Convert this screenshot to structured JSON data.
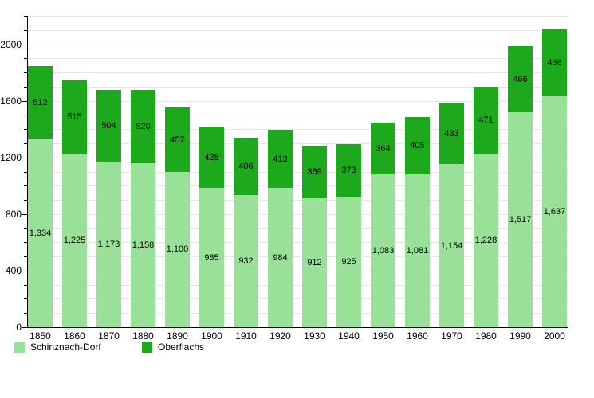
{
  "chart_data": {
    "type": "bar",
    "stacked": true,
    "title": "",
    "xlabel": "",
    "ylabel": "",
    "categories": [
      "1850",
      "1860",
      "1870",
      "1880",
      "1890",
      "1900",
      "1910",
      "1920",
      "1930",
      "1940",
      "1950",
      "1960",
      "1970",
      "1980",
      "1990",
      "2000"
    ],
    "series": [
      {
        "name": "Schinznach-Dorf",
        "color": "#99e099",
        "values": [
          1334,
          1225,
          1173,
          1158,
          1100,
          985,
          932,
          984,
          912,
          925,
          1083,
          1081,
          1154,
          1228,
          1517,
          1637
        ]
      },
      {
        "name": "Oberflachs",
        "color": "#1ca91c",
        "values": [
          512,
          515,
          504,
          520,
          457,
          428,
          406,
          413,
          369,
          373,
          364,
          405,
          433,
          471,
          466,
          468
        ]
      }
    ],
    "ylim": [
      0,
      2200
    ],
    "yticks_labeled": [
      0,
      400,
      800,
      1200,
      1600,
      2000
    ],
    "ytick_minor_step": 100,
    "grid": true,
    "gridline_step": 100,
    "gridline_color": "#e6e6e6",
    "axis_color": "#000000",
    "value_labels": "inside-center",
    "value_label_color": "#000000",
    "legend_position": "bottom-left"
  }
}
